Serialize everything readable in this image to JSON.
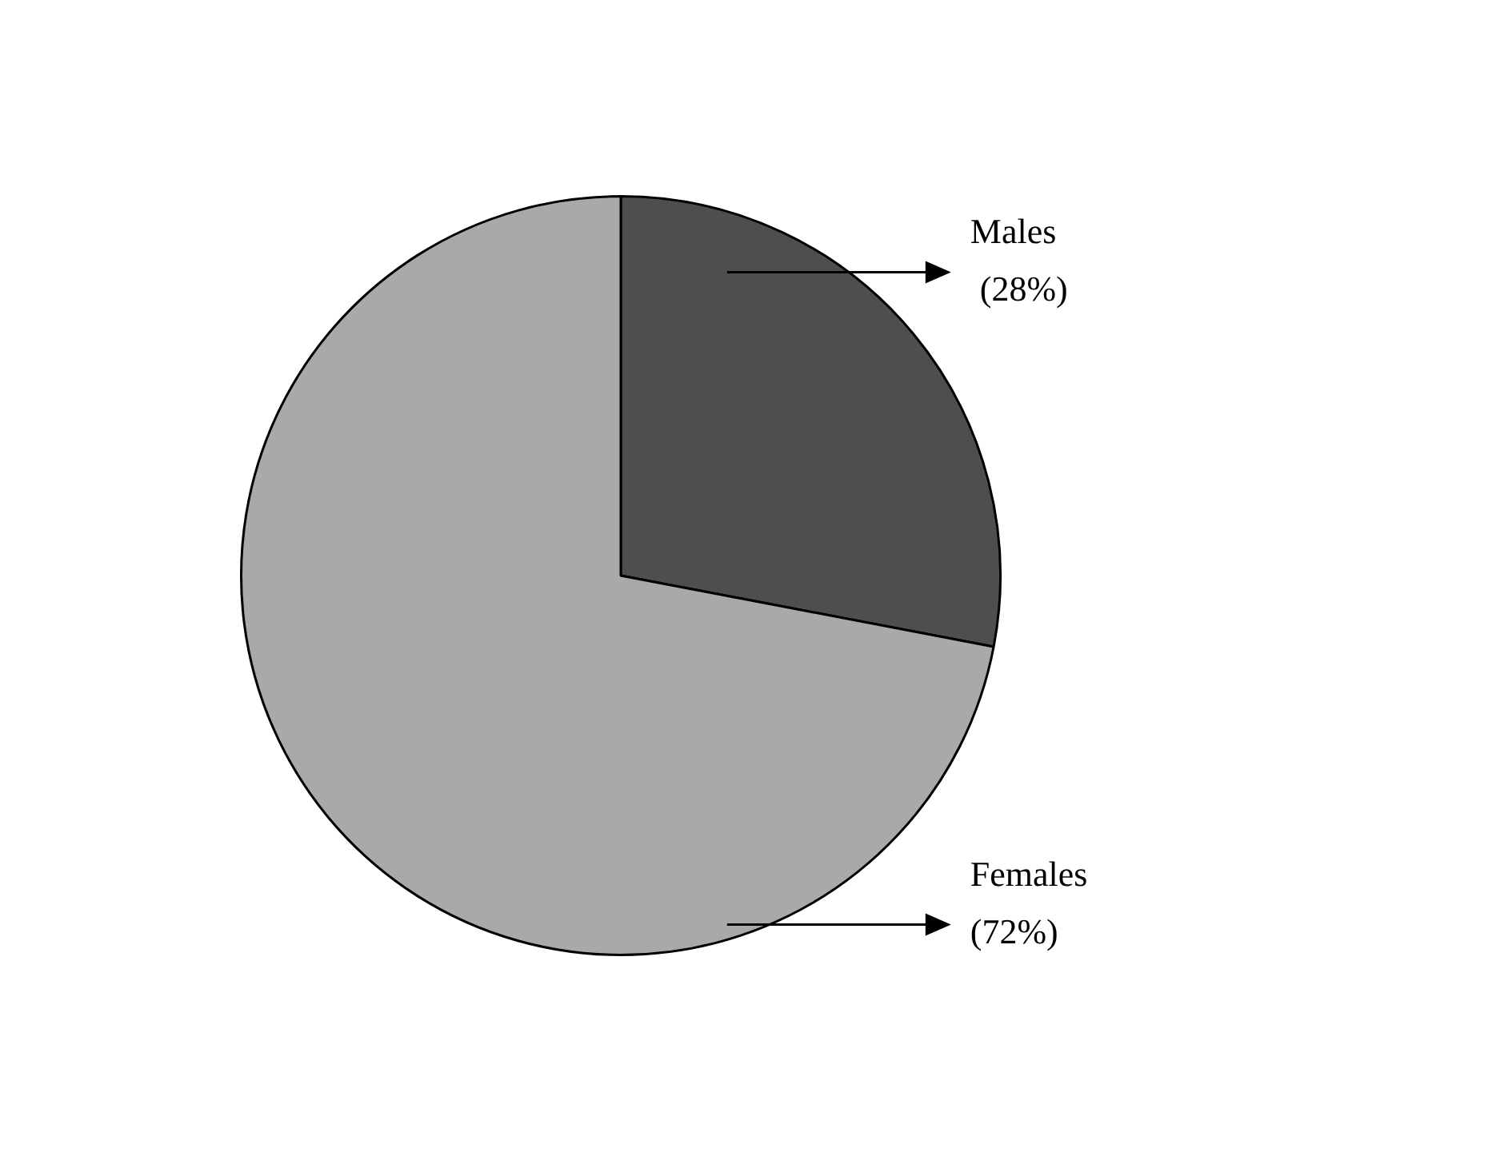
{
  "chart_data": {
    "type": "pie",
    "categories": [
      "Males",
      "Females"
    ],
    "values": [
      28,
      72
    ],
    "colors": [
      "#4e4e4e",
      "#a9a9a9"
    ],
    "value_labels": [
      "(28%)",
      "(72%)"
    ],
    "legend": false
  }
}
